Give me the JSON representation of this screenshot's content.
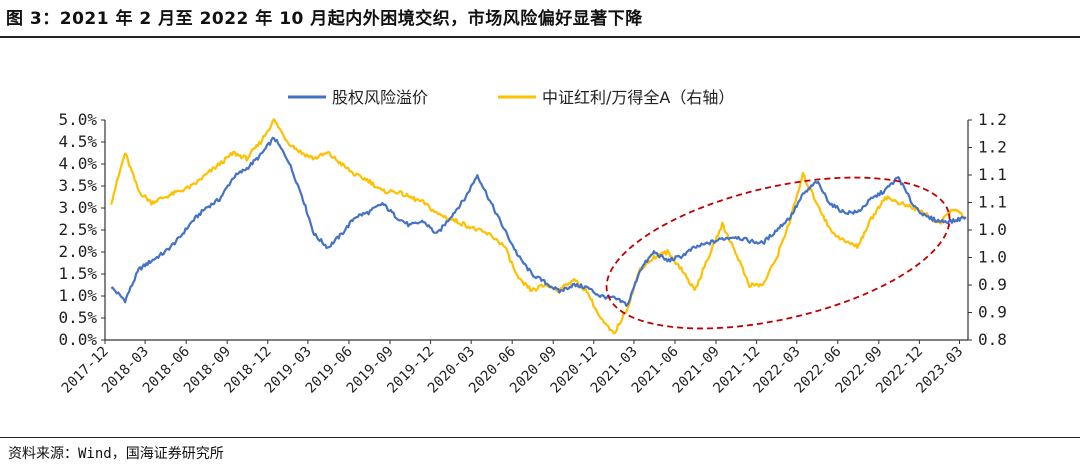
{
  "figure": {
    "title": "图 3：2021 年 2 月至 2022 年 10 月起内外困境交织，市场风险偏好显著下降",
    "source": "资料来源：Wind，国海证券研究所"
  },
  "chart_data": {
    "type": "line",
    "title": "",
    "legend_position": "top",
    "grid": false,
    "x_tick_labels": [
      "2017-12",
      "2018-03",
      "2018-06",
      "2018-09",
      "2018-12",
      "2019-03",
      "2019-06",
      "2019-09",
      "2019-12",
      "2020-03",
      "2020-06",
      "2020-09",
      "2020-12",
      "2021-03",
      "2021-06",
      "2021-09",
      "2021-12",
      "2022-03",
      "2022-06",
      "2022-09",
      "2022-12",
      "2023-03"
    ],
    "y_left": {
      "range": [
        0,
        5.0
      ],
      "tick_labels": [
        "0.0%",
        "0.5%",
        "1.0%",
        "1.5%",
        "2.0%",
        "2.5%",
        "3.0%",
        "3.5%",
        "4.0%",
        "4.5%",
        "5.0%"
      ]
    },
    "y_right": {
      "range": [
        0.8,
        1.2
      ],
      "tick_labels": [
        "0.8",
        "0.9",
        "0.9",
        "1.0",
        "1.0",
        "1.1",
        "1.1",
        "1.2",
        "1.2"
      ]
    },
    "series": [
      {
        "name": "股权风险溢价",
        "axis": "left",
        "color": "#4472C4",
        "x": [
          "2017-12",
          "2018-01",
          "2018-02",
          "2018-03",
          "2018-04",
          "2018-05",
          "2018-06",
          "2018-07",
          "2018-08",
          "2018-09",
          "2018-10",
          "2018-11",
          "2018-12",
          "2019-01",
          "2019-02",
          "2019-03",
          "2019-04",
          "2019-05",
          "2019-06",
          "2019-07",
          "2019-08",
          "2019-09",
          "2019-10",
          "2019-11",
          "2019-12",
          "2020-01",
          "2020-02",
          "2020-03",
          "2020-04",
          "2020-05",
          "2020-06",
          "2020-07",
          "2020-08",
          "2020-09",
          "2020-10",
          "2020-11",
          "2020-12",
          "2021-01",
          "2021-02",
          "2021-03",
          "2021-04",
          "2021-05",
          "2021-06",
          "2021-07",
          "2021-08",
          "2021-09",
          "2021-10",
          "2021-11",
          "2021-12",
          "2022-01",
          "2022-02",
          "2022-03",
          "2022-04",
          "2022-05",
          "2022-06",
          "2022-07",
          "2022-08",
          "2022-09",
          "2022-10",
          "2022-11",
          "2022-12",
          "2023-01",
          "2023-02",
          "2023-03"
        ],
        "values": [
          1.2,
          0.9,
          1.6,
          1.8,
          2.0,
          2.3,
          2.7,
          3.0,
          3.2,
          3.7,
          3.9,
          4.2,
          4.6,
          4.1,
          3.3,
          2.4,
          2.1,
          2.4,
          2.8,
          2.9,
          3.1,
          2.8,
          2.6,
          2.7,
          2.4,
          2.8,
          3.2,
          3.75,
          3.1,
          2.5,
          1.9,
          1.5,
          1.3,
          1.1,
          1.25,
          1.2,
          1.0,
          0.95,
          0.8,
          1.6,
          2.0,
          1.8,
          1.9,
          2.1,
          2.2,
          2.3,
          2.35,
          2.25,
          2.2,
          2.5,
          2.8,
          3.3,
          3.6,
          3.1,
          2.9,
          2.9,
          3.2,
          3.4,
          3.7,
          3.1,
          2.8,
          2.7,
          2.7,
          2.8
        ]
      },
      {
        "name": "中证红利/万得全A（右轴）",
        "axis": "right",
        "color": "#FFC000",
        "x": [
          "2017-12",
          "2018-01",
          "2018-02",
          "2018-03",
          "2018-04",
          "2018-05",
          "2018-06",
          "2018-07",
          "2018-08",
          "2018-09",
          "2018-10",
          "2018-11",
          "2018-12",
          "2019-01",
          "2019-02",
          "2019-03",
          "2019-04",
          "2019-05",
          "2019-06",
          "2019-07",
          "2019-08",
          "2019-09",
          "2019-10",
          "2019-11",
          "2019-12",
          "2020-01",
          "2020-02",
          "2020-03",
          "2020-04",
          "2020-05",
          "2020-06",
          "2020-07",
          "2020-08",
          "2020-09",
          "2020-10",
          "2020-11",
          "2020-12",
          "2021-01",
          "2021-02",
          "2021-03",
          "2021-04",
          "2021-05",
          "2021-06",
          "2021-07",
          "2021-08",
          "2021-09",
          "2021-10",
          "2021-11",
          "2021-12",
          "2022-01",
          "2022-02",
          "2022-03",
          "2022-04",
          "2022-05",
          "2022-06",
          "2022-07",
          "2022-08",
          "2022-09",
          "2022-10",
          "2022-11",
          "2022-12",
          "2023-01",
          "2023-02",
          "2023-03"
        ],
        "values": [
          1.05,
          1.14,
          1.07,
          1.05,
          1.06,
          1.07,
          1.08,
          1.1,
          1.12,
          1.14,
          1.13,
          1.16,
          1.2,
          1.16,
          1.14,
          1.13,
          1.14,
          1.12,
          1.1,
          1.09,
          1.07,
          1.07,
          1.06,
          1.05,
          1.03,
          1.02,
          1.01,
          1.0,
          0.99,
          0.97,
          0.91,
          0.89,
          0.9,
          0.89,
          0.91,
          0.89,
          0.84,
          0.81,
          0.86,
          0.93,
          0.95,
          0.96,
          0.93,
          0.89,
          0.95,
          1.01,
          0.96,
          0.9,
          0.9,
          0.95,
          1.02,
          1.1,
          1.05,
          1.0,
          0.98,
          0.97,
          1.02,
          1.06,
          1.05,
          1.04,
          1.03,
          1.01,
          1.04,
          1.02
        ]
      }
    ],
    "annotation": {
      "shape": "ellipse",
      "color": "#C00000",
      "style": "dashed",
      "from": "2021-02",
      "to": "2022-10"
    }
  }
}
